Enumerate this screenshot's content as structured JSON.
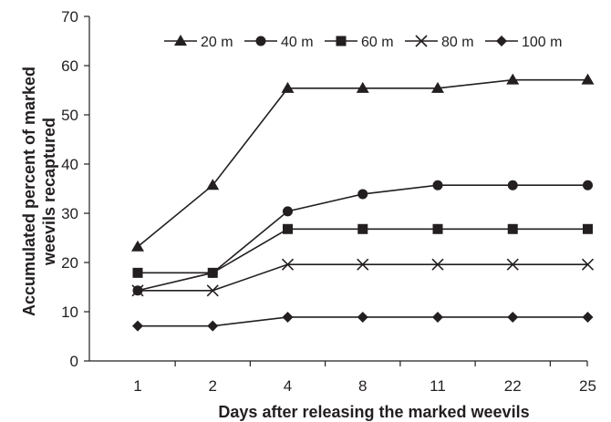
{
  "chart_data": {
    "type": "line",
    "title": "",
    "xlabel": "Days after releasing the marked weevils",
    "ylabel_lines": [
      "Accumulated percent of marked",
      "weevils recaptured"
    ],
    "categories": [
      "1",
      "2",
      "4",
      "8",
      "11",
      "22",
      "25"
    ],
    "ylim": [
      0,
      70
    ],
    "yticks": [
      0,
      10,
      20,
      30,
      40,
      50,
      60,
      70
    ],
    "grid": false,
    "legend_position": "top",
    "series": [
      {
        "name": "20 m",
        "marker": "triangle",
        "values": [
          23.2,
          35.7,
          55.4,
          55.4,
          55.4,
          57.1,
          57.1
        ]
      },
      {
        "name": "40 m",
        "marker": "circle",
        "values": [
          14.3,
          17.9,
          30.4,
          33.9,
          35.7,
          35.7,
          35.7
        ]
      },
      {
        "name": "60 m",
        "marker": "square",
        "values": [
          17.9,
          17.9,
          26.8,
          26.8,
          26.8,
          26.8,
          26.8
        ]
      },
      {
        "name": "80 m",
        "marker": "x",
        "values": [
          14.3,
          14.3,
          19.6,
          19.6,
          19.6,
          19.6,
          19.6
        ]
      },
      {
        "name": "100 m",
        "marker": "diamond",
        "values": [
          7.1,
          7.1,
          8.9,
          8.9,
          8.9,
          8.9,
          8.9
        ]
      }
    ],
    "colors": {
      "line": "#231f20",
      "axis": "#231f20",
      "background": "#ffffff"
    }
  }
}
